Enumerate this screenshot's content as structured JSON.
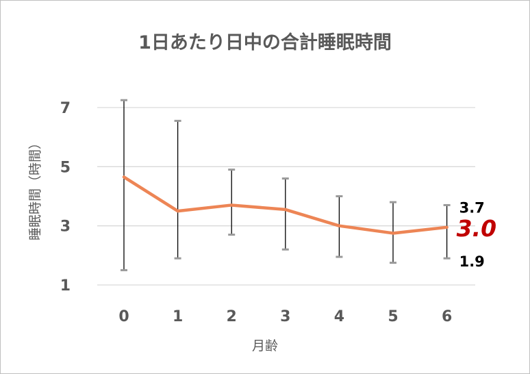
{
  "chart_data": {
    "type": "line",
    "title": "1日あたり日中の合計睡眠時間",
    "xlabel": "月齢",
    "ylabel": "睡眠時間（時間）",
    "categories": [
      "0",
      "1",
      "2",
      "3",
      "4",
      "5",
      "6"
    ],
    "series": [
      {
        "values": [
          4.65,
          3.5,
          3.7,
          3.55,
          3.0,
          2.75,
          2.95
        ],
        "upper": [
          7.25,
          6.55,
          4.9,
          4.6,
          4.0,
          3.8,
          3.7
        ],
        "lower": [
          1.5,
          1.9,
          2.7,
          2.2,
          1.95,
          1.75,
          1.9
        ],
        "color": "#ED8555",
        "errorbar_color": "#000000"
      }
    ],
    "yticks": [
      1,
      3,
      5,
      7
    ],
    "ytick_labels": [
      "1",
      "3",
      "5",
      "7"
    ],
    "ylim": [
      1,
      7
    ],
    "grid": true,
    "legend": "none",
    "annotations": {
      "upper": "3.7",
      "mean": "3.0",
      "lower": "1.9"
    },
    "colors": {
      "gridline": "#d9d9d9",
      "axis_text": "#595959",
      "mean_annotation": "#c00000"
    }
  }
}
